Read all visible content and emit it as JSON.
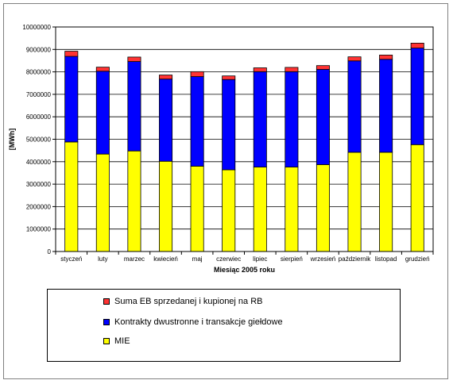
{
  "chart_data": {
    "type": "bar",
    "stacked": true,
    "categories": [
      "styczeń",
      "luty",
      "marzec",
      "kwiecień",
      "maj",
      "czerwiec",
      "lipiec",
      "sierpień",
      "wrzesień",
      "październik",
      "listopad",
      "grudzień"
    ],
    "series": [
      {
        "name": "MIE",
        "color": "#FFFF00",
        "values": [
          4880000,
          4340000,
          4480000,
          4020000,
          3800000,
          3640000,
          3760000,
          3760000,
          3870000,
          4420000,
          4420000,
          4760000
        ]
      },
      {
        "name": "Kontrakty dwustronne i transakcje giełdowe",
        "color": "#0000FF",
        "values": [
          3810000,
          3690000,
          3980000,
          3660000,
          3990000,
          4020000,
          4250000,
          4250000,
          4240000,
          4070000,
          4140000,
          4300000
        ]
      },
      {
        "name": "Suma EB sprzedanej i kupionej na RB",
        "color": "#FF3333",
        "values": [
          230000,
          180000,
          200000,
          180000,
          220000,
          160000,
          170000,
          190000,
          170000,
          180000,
          190000,
          220000
        ]
      }
    ],
    "xlabel": "Miesiąc 2005 roku",
    "ylabel": "[MWh]",
    "ylim": [
      0,
      10000000
    ],
    "yticks": [
      0,
      1000000,
      2000000,
      3000000,
      4000000,
      5000000,
      6000000,
      7000000,
      8000000,
      9000000,
      10000000
    ],
    "grid": true,
    "legend_position": "bottom"
  }
}
